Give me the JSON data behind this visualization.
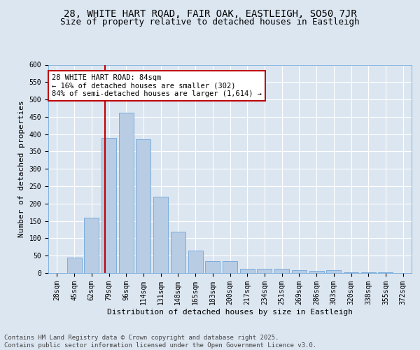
{
  "title1": "28, WHITE HART ROAD, FAIR OAK, EASTLEIGH, SO50 7JR",
  "title2": "Size of property relative to detached houses in Eastleigh",
  "xlabel": "Distribution of detached houses by size in Eastleigh",
  "ylabel": "Number of detached properties",
  "categories": [
    "28sqm",
    "45sqm",
    "62sqm",
    "79sqm",
    "96sqm",
    "114sqm",
    "131sqm",
    "148sqm",
    "165sqm",
    "183sqm",
    "200sqm",
    "217sqm",
    "234sqm",
    "251sqm",
    "269sqm",
    "286sqm",
    "303sqm",
    "320sqm",
    "338sqm",
    "355sqm",
    "372sqm"
  ],
  "values": [
    1,
    45,
    160,
    390,
    462,
    385,
    220,
    120,
    65,
    35,
    35,
    13,
    13,
    13,
    8,
    7,
    8,
    2,
    2,
    2,
    1
  ],
  "bar_color": "#b8cce4",
  "bar_edge_color": "#5b9bd5",
  "background_color": "#dce6f1",
  "plot_bg_color": "#dce6f1",
  "grid_color": "#ffffff",
  "vline_color": "#c00000",
  "annotation_box_text": "28 WHITE HART ROAD: 84sqm\n← 16% of detached houses are smaller (302)\n84% of semi-detached houses are larger (1,614) →",
  "annotation_box_edge_color": "#c00000",
  "annotation_box_bg": "#ffffff",
  "ylim": [
    0,
    600
  ],
  "yticks": [
    0,
    50,
    100,
    150,
    200,
    250,
    300,
    350,
    400,
    450,
    500,
    550,
    600
  ],
  "footer_text": "Contains HM Land Registry data © Crown copyright and database right 2025.\nContains public sector information licensed under the Open Government Licence v3.0.",
  "title_fontsize": 10,
  "subtitle_fontsize": 9,
  "axis_label_fontsize": 8,
  "tick_fontsize": 7,
  "annotation_fontsize": 7.5,
  "footer_fontsize": 6.5
}
